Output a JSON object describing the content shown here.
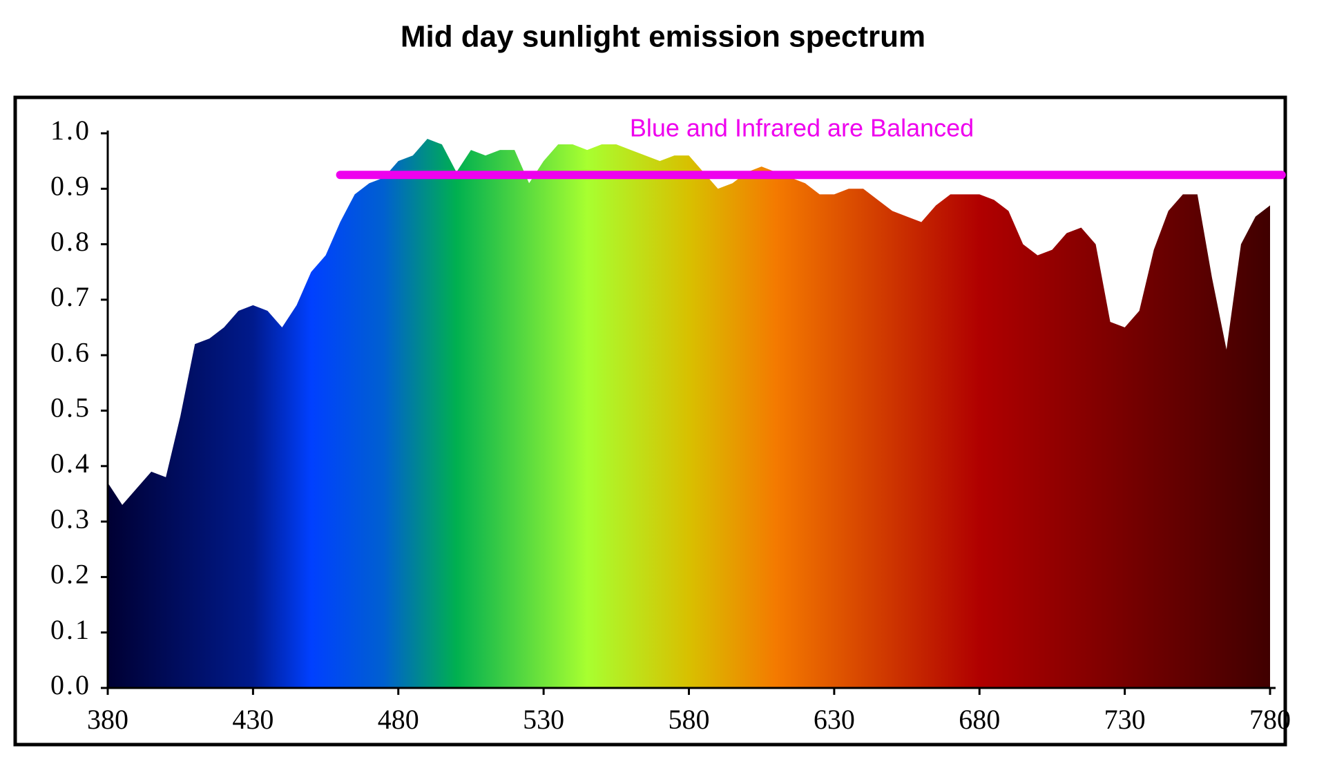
{
  "chart_data": {
    "type": "area",
    "title": "Mid day sunlight emission spectrum",
    "x": [
      380,
      385,
      390,
      395,
      400,
      405,
      410,
      415,
      420,
      425,
      430,
      435,
      440,
      445,
      450,
      455,
      460,
      465,
      470,
      475,
      480,
      485,
      490,
      495,
      500,
      505,
      510,
      515,
      520,
      525,
      530,
      535,
      540,
      545,
      550,
      555,
      560,
      565,
      570,
      575,
      580,
      585,
      590,
      595,
      600,
      605,
      610,
      615,
      620,
      625,
      630,
      635,
      640,
      645,
      650,
      655,
      660,
      665,
      670,
      675,
      680,
      685,
      690,
      695,
      700,
      705,
      710,
      715,
      720,
      725,
      730,
      735,
      740,
      745,
      750,
      755,
      760,
      765,
      770,
      775,
      780
    ],
    "values": [
      0.37,
      0.33,
      0.36,
      0.39,
      0.38,
      0.49,
      0.62,
      0.63,
      0.65,
      0.68,
      0.69,
      0.68,
      0.65,
      0.69,
      0.75,
      0.78,
      0.84,
      0.89,
      0.91,
      0.92,
      0.95,
      0.96,
      0.99,
      0.98,
      0.93,
      0.97,
      0.96,
      0.97,
      0.97,
      0.91,
      0.95,
      0.98,
      0.98,
      0.97,
      0.98,
      0.98,
      0.97,
      0.96,
      0.95,
      0.96,
      0.96,
      0.93,
      0.9,
      0.91,
      0.93,
      0.94,
      0.93,
      0.92,
      0.91,
      0.89,
      0.89,
      0.9,
      0.9,
      0.88,
      0.86,
      0.85,
      0.84,
      0.87,
      0.89,
      0.89,
      0.89,
      0.88,
      0.86,
      0.8,
      0.78,
      0.79,
      0.82,
      0.83,
      0.8,
      0.66,
      0.65,
      0.68,
      0.79,
      0.86,
      0.89,
      0.89,
      0.74,
      0.61,
      0.8,
      0.85,
      0.87
    ],
    "fill_gradient": [
      {
        "at": 380,
        "color": "#000033"
      },
      {
        "at": 430,
        "color": "#001a8c"
      },
      {
        "at": 450,
        "color": "#0040ff"
      },
      {
        "at": 475,
        "color": "#0060d0"
      },
      {
        "at": 500,
        "color": "#00b050"
      },
      {
        "at": 545,
        "color": "#a8ff30"
      },
      {
        "at": 580,
        "color": "#d8c000"
      },
      {
        "at": 610,
        "color": "#f47a00"
      },
      {
        "at": 680,
        "color": "#b00000"
      },
      {
        "at": 780,
        "color": "#400000"
      }
    ],
    "xlim": [
      380,
      780
    ],
    "xticks": [
      380,
      430,
      480,
      530,
      580,
      630,
      680,
      730,
      780
    ],
    "ylim": [
      0,
      1
    ],
    "yticks": [
      {
        "value": 0,
        "label": "0.0"
      },
      {
        "value": 0.1,
        "label": "0.1"
      },
      {
        "value": 0.2,
        "label": "0.2"
      },
      {
        "value": 0.3,
        "label": "0.3"
      },
      {
        "value": 0.4,
        "label": "0.4"
      },
      {
        "value": 0.5,
        "label": "0.5"
      },
      {
        "value": 0.6,
        "label": "0.6"
      },
      {
        "value": 0.7,
        "label": "0.7"
      },
      {
        "value": 0.8,
        "label": "0.8"
      },
      {
        "value": 0.9,
        "label": "0.9"
      },
      {
        "value": 1,
        "label": "1.0"
      }
    ],
    "reference_line": {
      "label": "Blue and Infrared are Balanced",
      "value": 0.925,
      "x": [
        460,
        784
      ],
      "color": "#ee00ee"
    }
  }
}
